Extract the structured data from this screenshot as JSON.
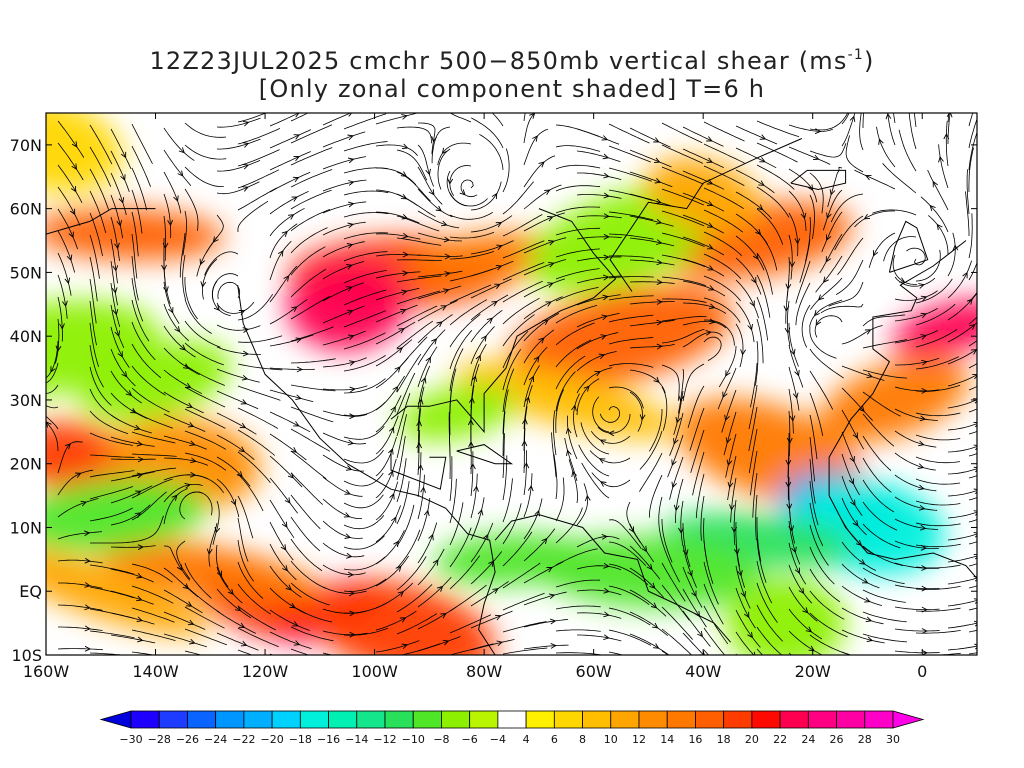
{
  "title": {
    "line1_pre": "12Z23JUL2025 cmchr 500−850mb vertical shear (ms",
    "line1_exp": "-1",
    "line1_post": ")",
    "line2": "[Only zonal component shaded] T=6 h"
  },
  "map": {
    "lat_labels": [
      "70N",
      "60N",
      "50N",
      "40N",
      "30N",
      "20N",
      "10N",
      "EQ",
      "10S"
    ],
    "lon_labels": [
      "160W",
      "140W",
      "120W",
      "100W",
      "80W",
      "60W",
      "40W",
      "20W",
      "0"
    ],
    "lat_values": [
      70,
      60,
      50,
      40,
      30,
      20,
      10,
      0,
      -10
    ],
    "lon_values": [
      -160,
      -140,
      -120,
      -100,
      -80,
      -60,
      -40,
      -20,
      0
    ],
    "lon_range": [
      -160,
      10
    ],
    "lat_range": [
      -10,
      75
    ],
    "shaded_variable": "zonal vertical shear",
    "streamlines": true,
    "shading_regions": [
      {
        "lon": -108,
        "lat": -3,
        "value": 24
      },
      {
        "lon": -120,
        "lat": -1,
        "value": 20
      },
      {
        "lon": -95,
        "lat": -6,
        "value": 18
      },
      {
        "lon": -130,
        "lat": 3,
        "value": 14
      },
      {
        "lon": -155,
        "lat": 21,
        "value": 18
      },
      {
        "lon": -135,
        "lat": 20,
        "value": 12
      },
      {
        "lon": -145,
        "lat": 56,
        "value": 16
      },
      {
        "lon": -95,
        "lat": 50,
        "value": 18
      },
      {
        "lon": -105,
        "lat": 45,
        "value": 22
      },
      {
        "lon": -80,
        "lat": 52,
        "value": 14
      },
      {
        "lon": -30,
        "lat": 55,
        "value": 16
      },
      {
        "lon": -55,
        "lat": 40,
        "value": 16
      },
      {
        "lon": 5,
        "lat": 41,
        "value": 22
      },
      {
        "lon": -5,
        "lat": 30,
        "value": 14
      },
      {
        "lon": -28,
        "lat": 22,
        "value": 14
      },
      {
        "lon": -65,
        "lat": 30,
        "value": 8
      },
      {
        "lon": -15,
        "lat": 13,
        "value": -24
      },
      {
        "lon": -10,
        "lat": 10,
        "value": -18
      },
      {
        "lon": -30,
        "lat": 8,
        "value": -12
      },
      {
        "lon": -50,
        "lat": 3,
        "value": -10
      },
      {
        "lon": -25,
        "lat": -5,
        "value": -8
      },
      {
        "lon": -75,
        "lat": 5,
        "value": -10
      },
      {
        "lon": -148,
        "lat": 12,
        "value": -10
      },
      {
        "lon": -160,
        "lat": 38,
        "value": -8
      },
      {
        "lon": -85,
        "lat": 28,
        "value": -8
      },
      {
        "lon": -140,
        "lat": 33,
        "value": -8
      },
      {
        "lon": -55,
        "lat": 55,
        "value": -8
      },
      {
        "lon": -150,
        "lat": 0,
        "value": 10
      },
      {
        "lon": -40,
        "lat": 62,
        "value": 10
      },
      {
        "lon": -160,
        "lat": 70,
        "value": 6
      }
    ]
  },
  "colorbar": {
    "labels": [
      "−30",
      "−28",
      "−26",
      "−24",
      "−22",
      "−20",
      "−18",
      "−16",
      "−14",
      "−12",
      "−10",
      "−8",
      "−6",
      "−4",
      "4",
      "6",
      "8",
      "10",
      "12",
      "14",
      "16",
      "18",
      "20",
      "22",
      "24",
      "26",
      "28",
      "30"
    ],
    "colors": [
      "#1e00ff",
      "#1e3cff",
      "#0a64ff",
      "#0096ff",
      "#00afff",
      "#00d2ff",
      "#00f0dc",
      "#00f0b4",
      "#14e68c",
      "#28e05a",
      "#50e628",
      "#8cf000",
      "#b9f500",
      "#ffffff",
      "#fff000",
      "#ffd700",
      "#ffbe00",
      "#ffa500",
      "#ff8c00",
      "#ff7800",
      "#ff5f00",
      "#ff3c00",
      "#ff0a00",
      "#ff0050",
      "#ff0082",
      "#ff00a5",
      "#ff00c8"
    ],
    "under_color": "#0000dc",
    "over_color": "#ff00e6"
  }
}
